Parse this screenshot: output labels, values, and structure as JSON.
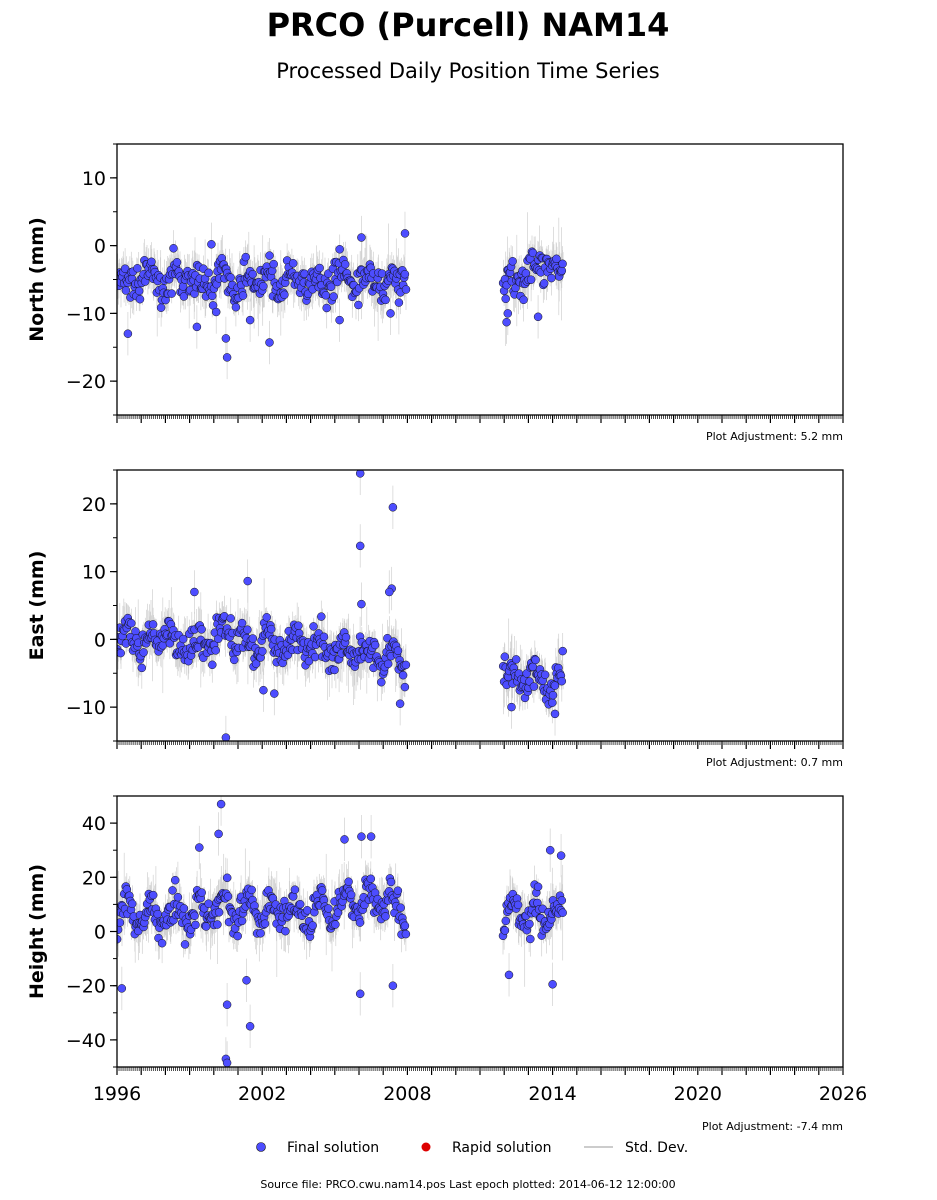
{
  "title": "PRCO (Purcell) NAM14",
  "subtitle": "Processed Daily Position Time Series",
  "legend": {
    "final": "Final solution",
    "rapid": "Rapid solution",
    "std": "Std. Dev.",
    "placement": "bottom"
  },
  "footer": "Source file: PRCO.cwu.nam14.pos  Last epoch plotted: 2014-06-12 12:00:00",
  "colors": {
    "final": "#4d4dff",
    "rapid": "#dd0000",
    "std": "#aaaaaa",
    "marker_edge": "#111111"
  },
  "chart_data": [
    {
      "type": "scatter",
      "ylabel": "North (mm)",
      "adjustment": "Plot Adjustment: 5.2 mm",
      "xlim": [
        1996,
        2026
      ],
      "ylim": [
        -25,
        15
      ],
      "yticks": [
        10,
        0,
        -10,
        -20
      ],
      "ytick_labels": [
        "10",
        "0",
        "−10",
        "−20"
      ],
      "segments": [
        {
          "x0": 1996.0,
          "x1": 2007.95
        },
        {
          "x0": 2011.95,
          "x1": 2014.45
        }
      ],
      "series": [
        {
          "x": [
            1996.0,
            1996.5,
            1997.0,
            1997.5,
            1998.0,
            1998.5,
            1999.0,
            1999.5,
            2000.0,
            2000.5,
            2001.0,
            2001.5,
            2002.0,
            2002.5,
            2003.0,
            2003.5,
            2004.0,
            2004.5,
            2005.0,
            2005.5,
            2006.0,
            2006.5,
            2007.0,
            2007.5,
            2007.95,
            2012.0,
            2012.5,
            2013.0,
            2013.3,
            2013.6,
            2014.0,
            2014.45
          ],
          "y": [
            -5,
            -6,
            -4,
            -5,
            -6,
            -4,
            -5,
            -6,
            -5,
            -4,
            -6,
            -5,
            -5,
            -6,
            -5,
            -6,
            -5,
            -6,
            -5,
            -4,
            -5,
            -5,
            -6,
            -5,
            -4,
            -5,
            -6,
            -3,
            -4,
            -3,
            -2,
            -5
          ]
        }
      ],
      "outliers": [
        [
          1996.45,
          -13
        ],
        [
          1999.3,
          -12
        ],
        [
          1999.9,
          0.2
        ],
        [
          2000.1,
          -9.8
        ],
        [
          2000.5,
          -13.7
        ],
        [
          2000.55,
          -16.5
        ],
        [
          2001.5,
          -11
        ],
        [
          2002.3,
          -14.3
        ],
        [
          2005.2,
          -11
        ],
        [
          2006.1,
          1.2
        ],
        [
          2007.3,
          -10
        ],
        [
          2007.9,
          1.8
        ],
        [
          2012.1,
          -11.3
        ],
        [
          2012.15,
          -10
        ],
        [
          2013.4,
          -10.5
        ],
        [
          2012.8,
          -8
        ]
      ]
    },
    {
      "type": "scatter",
      "ylabel": "East (mm)",
      "adjustment": "Plot Adjustment: 0.7 mm",
      "xlim": [
        1996,
        2026
      ],
      "ylim": [
        -15,
        25
      ],
      "yticks": [
        20,
        10,
        0,
        -10
      ],
      "ytick_labels": [
        "20",
        "10",
        "0",
        "−10"
      ],
      "segments": [
        {
          "x0": 1996.0,
          "x1": 2007.95
        },
        {
          "x0": 2011.95,
          "x1": 2014.45
        }
      ],
      "series": [
        {
          "x": [
            1996.0,
            1996.5,
            1997.0,
            1997.5,
            1998.0,
            1998.5,
            1999.0,
            1999.5,
            2000.0,
            2000.5,
            2001.0,
            2001.5,
            2002.0,
            2002.5,
            2003.0,
            2003.5,
            2004.0,
            2004.5,
            2005.0,
            2005.5,
            2006.0,
            2006.5,
            2007.0,
            2007.5,
            2007.95,
            2012.0,
            2012.5,
            2013.0,
            2013.3,
            2013.6,
            2014.0,
            2014.45
          ],
          "y": [
            -1,
            1,
            -1,
            0,
            1,
            -1,
            0,
            -1,
            0,
            1,
            0,
            -1,
            0,
            -1,
            -1,
            0,
            -1,
            -1,
            -2,
            -2,
            -3,
            -2,
            -3,
            -2,
            -4,
            -5,
            -6,
            -5,
            -6,
            -6,
            -7,
            -5
          ]
        }
      ],
      "outliers": [
        [
          1999.2,
          7
        ],
        [
          2000.5,
          -14.5
        ],
        [
          2001.4,
          8.6
        ],
        [
          2002.5,
          -8
        ],
        [
          2002.05,
          -7.5
        ],
        [
          2006.05,
          24.5
        ],
        [
          2006.05,
          13.8
        ],
        [
          2006.1,
          5.2
        ],
        [
          2007.4,
          19.5
        ],
        [
          2007.35,
          7.5
        ],
        [
          2007.25,
          7
        ],
        [
          2007.7,
          -9.5
        ],
        [
          2012.3,
          -10
        ],
        [
          2014.1,
          -11
        ]
      ]
    },
    {
      "type": "scatter",
      "ylabel": "Height (mm)",
      "adjustment": "Plot Adjustment: -7.4 mm",
      "xlim": [
        1996,
        2026
      ],
      "ylim": [
        -50,
        50
      ],
      "yticks": [
        40,
        20,
        0,
        -20,
        -40
      ],
      "ytick_labels": [
        "40",
        "20",
        "0",
        "−20",
        "−40"
      ],
      "xticks": [
        1996,
        2002,
        2008,
        2014,
        2020,
        2026
      ],
      "xtick_labels": [
        "1996",
        "2002",
        "2008",
        "2014",
        "2020",
        "2026"
      ],
      "segments": [
        {
          "x0": 1996.0,
          "x1": 2007.95
        },
        {
          "x0": 2011.95,
          "x1": 2014.45
        }
      ],
      "series": [
        {
          "x": [
            1996.0,
            1996.5,
            1997.0,
            1997.5,
            1998.0,
            1998.5,
            1999.0,
            1999.5,
            2000.0,
            2000.5,
            2001.0,
            2001.5,
            2002.0,
            2002.5,
            2003.0,
            2003.5,
            2004.0,
            2004.5,
            2005.0,
            2005.5,
            2006.0,
            2006.5,
            2007.0,
            2007.5,
            2007.95,
            2012.0,
            2012.5,
            2013.0,
            2013.3,
            2013.6,
            2014.0,
            2014.45
          ],
          "y": [
            3,
            10,
            2,
            8,
            3,
            10,
            2,
            8,
            5,
            12,
            5,
            10,
            4,
            11,
            4,
            10,
            5,
            12,
            6,
            14,
            8,
            14,
            10,
            12,
            6,
            5,
            10,
            4,
            10,
            5,
            8,
            6
          ]
        }
      ],
      "outliers": [
        [
          1996.2,
          -21
        ],
        [
          1999.4,
          31
        ],
        [
          2000.3,
          47
        ],
        [
          2000.2,
          36
        ],
        [
          2000.55,
          -27
        ],
        [
          2000.5,
          -47
        ],
        [
          2000.55,
          -48.5
        ],
        [
          2001.5,
          -35
        ],
        [
          2001.35,
          -18
        ],
        [
          2005.4,
          34
        ],
        [
          2006.1,
          35
        ],
        [
          2006.05,
          -23
        ],
        [
          2006.5,
          35
        ],
        [
          2007.4,
          -20
        ],
        [
          2012.2,
          -16
        ],
        [
          2013.9,
          30
        ],
        [
          2014.0,
          -19.5
        ],
        [
          2014.35,
          28
        ]
      ]
    }
  ]
}
